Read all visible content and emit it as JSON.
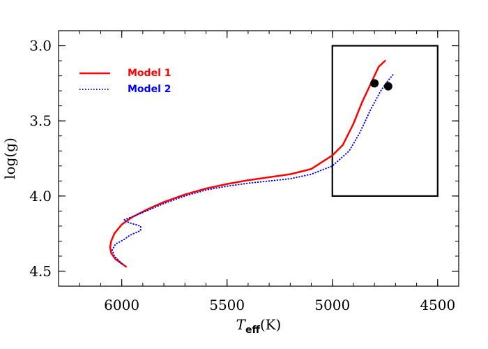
{
  "chart_data": {
    "type": "line",
    "title": "",
    "xlabel": {
      "main": "T",
      "sub": "eff",
      "unit": "(K)"
    },
    "ylabel": "log(g)",
    "xlim": [
      6300,
      4400
    ],
    "ylim": [
      4.6,
      2.9
    ],
    "x_ticks": [
      6000,
      5500,
      5000,
      4500
    ],
    "x_tick_labels": [
      "6000",
      "5500",
      "5000",
      "4500"
    ],
    "y_ticks": [
      3.0,
      3.5,
      4.0,
      4.5
    ],
    "y_tick_labels": [
      "3.0",
      "3.5",
      "4.0",
      "4.5"
    ],
    "x_minor_step": 100,
    "y_minor_step": 0.1,
    "legend_position": "top-left",
    "series": [
      {
        "name": "Model 1",
        "color": "#ff0000",
        "dash": "solid",
        "points": [
          [
            5980,
            4.47
          ],
          [
            6030,
            4.42
          ],
          [
            6050,
            4.38
          ],
          [
            6055,
            4.34
          ],
          [
            6050,
            4.3
          ],
          [
            6035,
            4.25
          ],
          [
            6000,
            4.19
          ],
          [
            5950,
            4.14
          ],
          [
            5880,
            4.09
          ],
          [
            5800,
            4.04
          ],
          [
            5700,
            3.99
          ],
          [
            5600,
            3.95
          ],
          [
            5500,
            3.92
          ],
          [
            5400,
            3.895
          ],
          [
            5300,
            3.875
          ],
          [
            5200,
            3.855
          ],
          [
            5100,
            3.82
          ],
          [
            5000,
            3.73
          ],
          [
            4950,
            3.66
          ],
          [
            4900,
            3.52
          ],
          [
            4860,
            3.38
          ],
          [
            4820,
            3.26
          ],
          [
            4780,
            3.14
          ],
          [
            4750,
            3.1
          ]
        ]
      },
      {
        "name": "Model 2",
        "color": "#0000ff",
        "dash": "dotted",
        "points": [
          [
            6000,
            4.45
          ],
          [
            6035,
            4.4
          ],
          [
            6045,
            4.36
          ],
          [
            6030,
            4.32
          ],
          [
            5990,
            4.29
          ],
          [
            5960,
            4.26
          ],
          [
            5910,
            4.23
          ],
          [
            5910,
            4.2
          ],
          [
            5960,
            4.18
          ],
          [
            5990,
            4.16
          ],
          [
            5900,
            4.11
          ],
          [
            5800,
            4.05
          ],
          [
            5700,
            4.0
          ],
          [
            5600,
            3.96
          ],
          [
            5500,
            3.935
          ],
          [
            5400,
            3.915
          ],
          [
            5300,
            3.9
          ],
          [
            5200,
            3.885
          ],
          [
            5100,
            3.855
          ],
          [
            5000,
            3.8
          ],
          [
            4920,
            3.7
          ],
          [
            4870,
            3.58
          ],
          [
            4820,
            3.43
          ],
          [
            4770,
            3.3
          ],
          [
            4740,
            3.24
          ],
          [
            4710,
            3.19
          ]
        ]
      }
    ],
    "markers": [
      {
        "x": 4800,
        "y": 3.25,
        "color": "#000000"
      },
      {
        "x": 4735,
        "y": 3.27,
        "color": "#000000"
      }
    ],
    "box": {
      "x0": 5000,
      "x1": 4500,
      "y0": 3.0,
      "y1": 4.0
    }
  }
}
